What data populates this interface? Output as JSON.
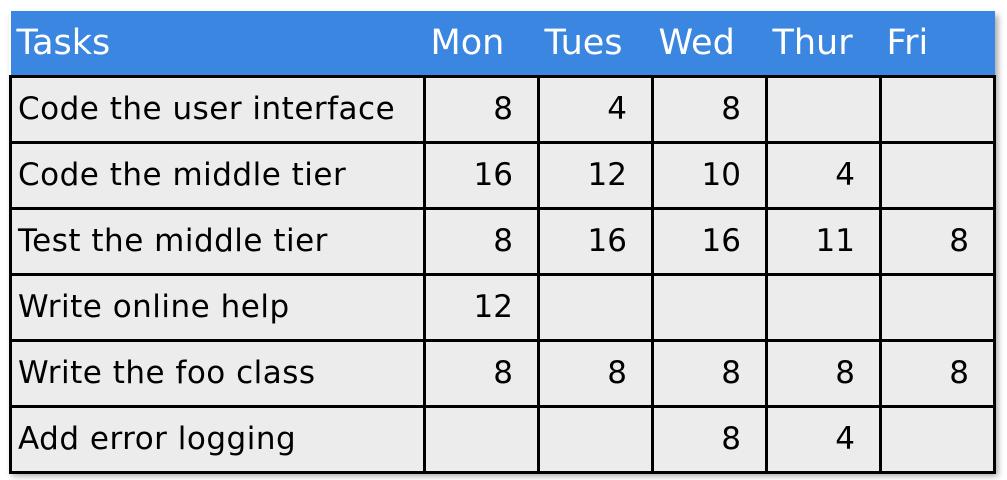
{
  "chart_data": {
    "type": "table",
    "title": "",
    "columns": [
      "Tasks",
      "Mon",
      "Tues",
      "Wed",
      "Thur",
      "Fri"
    ],
    "rows": [
      [
        "Code the user interface",
        "8",
        "4",
        "8",
        "",
        ""
      ],
      [
        "Code the middle tier",
        "16",
        "12",
        "10",
        "4",
        ""
      ],
      [
        "Test the middle tier",
        "8",
        "16",
        "16",
        "11",
        "8"
      ],
      [
        "Write online help",
        "12",
        "",
        "",
        "",
        ""
      ],
      [
        "Write the foo class",
        "8",
        "8",
        "8",
        "8",
        "8"
      ],
      [
        "Add error logging",
        "",
        "",
        "8",
        "4",
        ""
      ]
    ]
  },
  "colors": {
    "header_bg": "#3a86e0",
    "header_text": "#ffffff",
    "cell_bg": "#ececec",
    "border": "#000000"
  }
}
